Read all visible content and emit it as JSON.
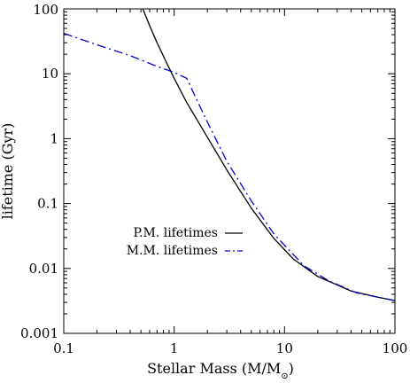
{
  "chart_data": {
    "type": "line",
    "xlabel": "Stellar Mass (M/M",
    "xlabel_symbol": "⊙",
    "xlabel_close": ")",
    "ylabel": "lifetime (Gyr)",
    "xscale": "log",
    "yscale": "log",
    "xlim": [
      0.1,
      100
    ],
    "ylim": [
      0.001,
      100
    ],
    "xticks": [
      0.1,
      1,
      10,
      100
    ],
    "xtick_labels": [
      "0.1",
      "1",
      "10",
      "100"
    ],
    "yticks": [
      0.001,
      0.01,
      0.1,
      1,
      10,
      100
    ],
    "ytick_labels": [
      "0.001",
      "0.01",
      "0.1",
      "1",
      "10",
      "100"
    ],
    "legend_position": "middle-left",
    "series": [
      {
        "name": "P.M. lifetimes",
        "color": "#000000",
        "style": "solid",
        "x": [
          0.52,
          0.6,
          0.7,
          0.85,
          1.0,
          1.3,
          2.0,
          3.0,
          5.0,
          8.0,
          12.0,
          20.0,
          40.0,
          70.0,
          100.0
        ],
        "y": [
          100,
          55,
          30,
          15,
          8.5,
          3.6,
          1.05,
          0.33,
          0.085,
          0.029,
          0.014,
          0.0075,
          0.0045,
          0.0036,
          0.0032
        ]
      },
      {
        "name": "M.M. lifetimes",
        "color": "#0000cc",
        "style": "dash-dot",
        "x": [
          0.1,
          0.2,
          0.4,
          0.7,
          1.0,
          1.3,
          1.6,
          2.0,
          3.0,
          5.0,
          8.0,
          15.0,
          25.0,
          45.0,
          100.0
        ],
        "y": [
          42,
          28,
          19,
          13,
          10.5,
          8.5,
          4.0,
          1.8,
          0.45,
          0.11,
          0.034,
          0.011,
          0.0065,
          0.0042,
          0.0032
        ]
      }
    ]
  }
}
